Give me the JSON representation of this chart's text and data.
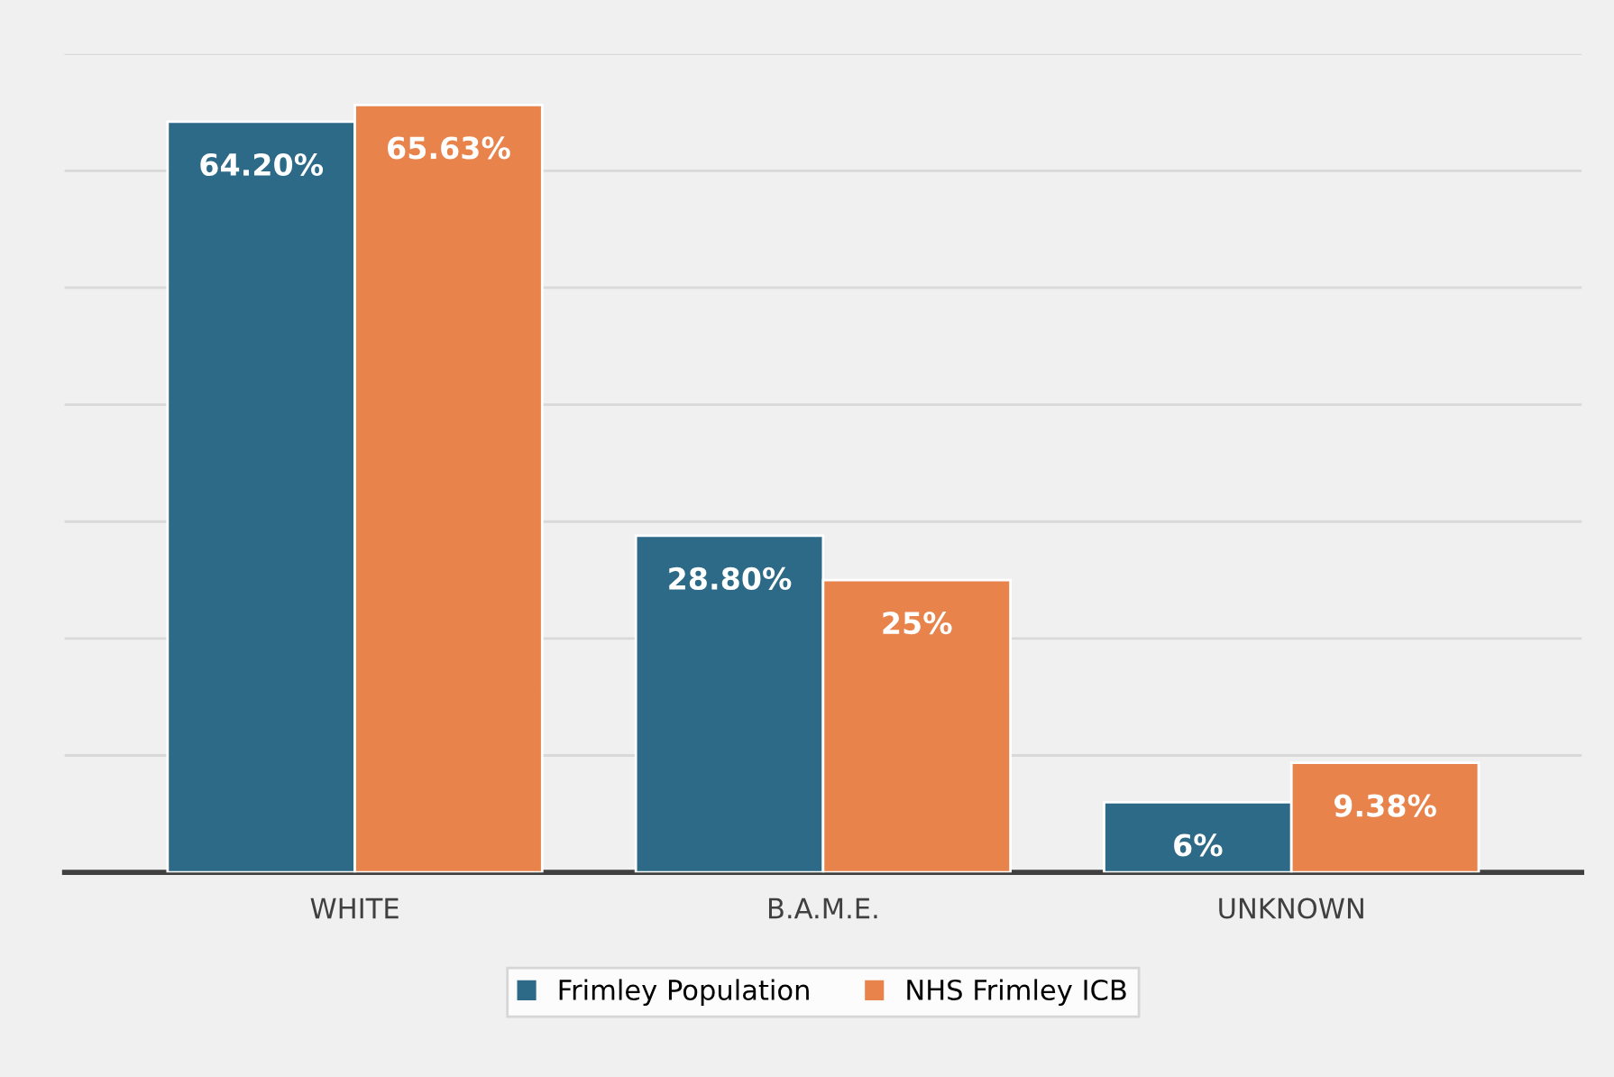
{
  "chart_data": {
    "type": "bar",
    "categories": [
      "WHITE",
      "B.A.M.E.",
      "UNKNOWN"
    ],
    "series": [
      {
        "name": "Frimley Population",
        "color": "#2d6a87",
        "values": [
          64.2,
          28.8,
          6
        ],
        "value_labels": [
          "64.20%",
          "28.80%",
          "6%"
        ]
      },
      {
        "name": "NHS Frimley ICB",
        "color": "#e8834c",
        "values": [
          65.63,
          25,
          9.38
        ],
        "value_labels": [
          "65.63%",
          "25%",
          "9.38%"
        ]
      }
    ],
    "ylim": [
      0,
      70
    ],
    "yticks": [
      {
        "value": 0,
        "label": null
      },
      {
        "value": 10,
        "label": null
      },
      {
        "value": 20,
        "label": null
      },
      {
        "value": 30,
        "label": null
      },
      {
        "value": 40,
        "label": null
      },
      {
        "value": 50,
        "label": null
      },
      {
        "value": 60,
        "label": null
      },
      {
        "value": 70,
        "label": null
      }
    ],
    "tick_labels": "x",
    "grid": "y",
    "legend": "bottom"
  }
}
